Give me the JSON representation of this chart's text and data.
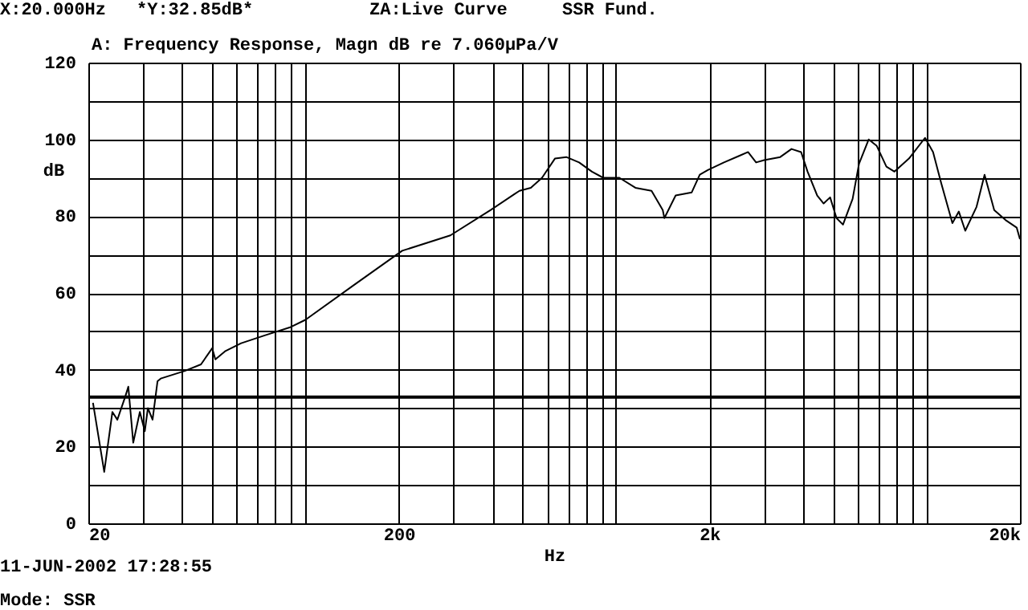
{
  "chart_data": {
    "type": "line",
    "title": "A: Frequency Response, Magn dB re 7.060µPa/V",
    "xlabel": "Hz",
    "ylabel": "dB",
    "annotations": [
      "X:20.000Hz",
      "*Y:32.85dB*",
      "ZA:Live Curve",
      "SSR Fund.",
      "11-JUN-2002 17:28:55",
      "Mode: SSR"
    ],
    "x": [
      20.7,
      22.5,
      23.9,
      24.8,
      26.3,
      26.9,
      27.9,
      29.3,
      30.4,
      31.1,
      32.2,
      33.4,
      34.2,
      40.9,
      46.1,
      50.1,
      51.3,
      55.1,
      62.1,
      74.3,
      88.9,
      100,
      143,
      205,
      293,
      395,
      472,
      489,
      532,
      578,
      636,
      692,
      761,
      837,
      910,
      1026,
      1155,
      1302,
      1415,
      1432,
      1557,
      1754,
      1862,
      1976,
      2227,
      2509,
      2663,
      2827,
      3001,
      3381,
      3675,
      3947,
      4141,
      4447,
      4665,
      4894,
      5133,
      5384,
      5782,
      6066,
      6516,
      6917,
      7430,
      7888,
      8780,
      9893,
      10500,
      11146,
      12118,
      12710,
      13332,
      14490,
      15383,
      16522,
      17964,
      19526,
      20000
    ],
    "series": [
      {
        "color": "#000000",
        "values": [
          31.4,
          13.4,
          29,
          27,
          33,
          35.6,
          21,
          29,
          24,
          30,
          27,
          37,
          37.7,
          39.7,
          41.4,
          45.6,
          42.7,
          44.8,
          46.9,
          49,
          51,
          53,
          62,
          71,
          75,
          81.6,
          85.8,
          86.6,
          87.4,
          90,
          95,
          95.4,
          94,
          91.6,
          90,
          90,
          87.4,
          86.6,
          81.6,
          79.5,
          85.4,
          86.2,
          90.8,
          92,
          94,
          95.8,
          96.7,
          94,
          94.6,
          95.4,
          97.5,
          96.7,
          91.6,
          85.4,
          83.3,
          84.9,
          79.5,
          77.8,
          84.5,
          93.7,
          100,
          98.3,
          92.9,
          91.6,
          95,
          100.4,
          96.7,
          88.7,
          78.2,
          81.2,
          76.2,
          82.4,
          90.8,
          81.6,
          79,
          77,
          74
        ]
      }
    ],
    "log": "x",
    "xlim": [
      20,
      20000
    ],
    "xticks": [
      20,
      {
        "value": 30,
        "label": null
      },
      {
        "value": 40,
        "label": null
      },
      {
        "value": 50,
        "label": null
      },
      {
        "value": 60,
        "label": null
      },
      {
        "value": 70,
        "label": null
      },
      {
        "value": 80,
        "label": null
      },
      {
        "value": 90,
        "label": null
      },
      {
        "value": 100,
        "label": null
      },
      200,
      {
        "value": 300,
        "label": null
      },
      {
        "value": 400,
        "label": null
      },
      {
        "value": 500,
        "label": null
      },
      {
        "value": 600,
        "label": null
      },
      {
        "value": 700,
        "label": null
      },
      {
        "value": 800,
        "label": null
      },
      {
        "value": 900,
        "label": null
      },
      {
        "value": 1000,
        "label": null
      },
      {
        "value": 2000,
        "label": "2k"
      },
      {
        "value": 3000,
        "label": null
      },
      {
        "value": 4000,
        "label": null
      },
      {
        "value": 5000,
        "label": null
      },
      {
        "value": 6000,
        "label": null
      },
      {
        "value": 7000,
        "label": null
      },
      {
        "value": 8000,
        "label": null
      },
      {
        "value": 9000,
        "label": null
      },
      {
        "value": 10000,
        "label": null
      },
      {
        "value": 20000,
        "label": "20k"
      }
    ],
    "ylim": [
      0,
      120
    ],
    "yticks": [
      0,
      {
        "value": 10,
        "label": null
      },
      20,
      {
        "value": 30,
        "label": null
      },
      40,
      {
        "value": 50,
        "label": null
      },
      60,
      {
        "value": 70,
        "label": null
      },
      80,
      {
        "value": 90,
        "label": null
      },
      100,
      {
        "value": 110,
        "label": null
      },
      120
    ],
    "ref_lines": [
      {
        "axis": "y",
        "value": 32.85
      }
    ],
    "grid": true,
    "marker": "none",
    "line_style": "solid"
  }
}
